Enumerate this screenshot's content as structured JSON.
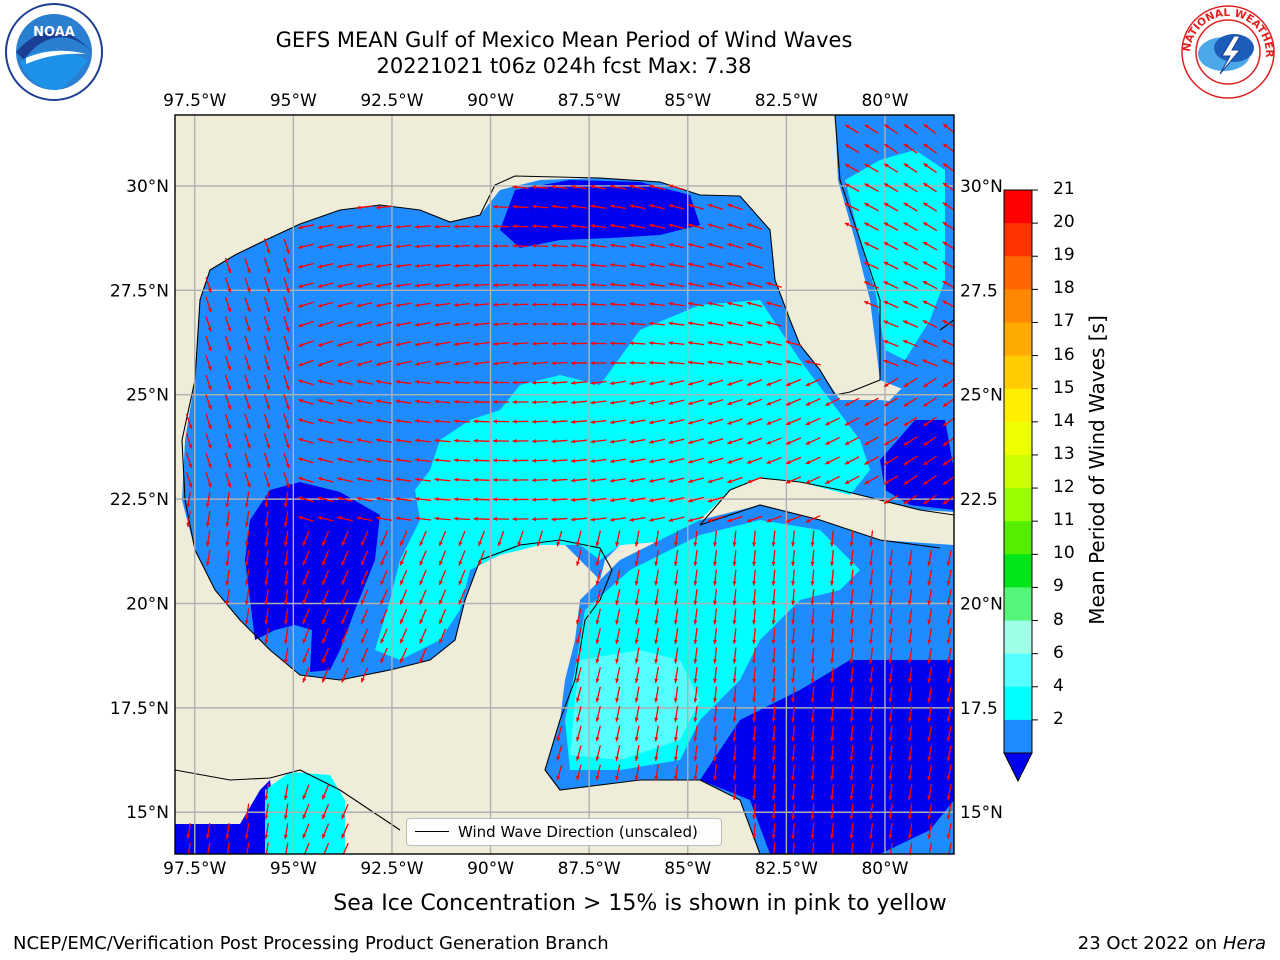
{
  "title": {
    "line1": "GEFS MEAN Gulf of Mexico Mean Period of Wind Waves",
    "line2": "20221021 t06z 024h fcst   Max: 7.38"
  },
  "logos": {
    "left": {
      "icon": "noaa-logo",
      "text": "NOAA"
    },
    "right": {
      "icon": "nws-logo",
      "text": "NATIONAL WEATHER SERVICE"
    }
  },
  "map": {
    "lon_ticks": [
      "97.5°W",
      "95°W",
      "92.5°W",
      "90°W",
      "87.5°W",
      "85°W",
      "82.5°W",
      "80°W"
    ],
    "lat_ticks_left": [
      "30°N",
      "27.5°N",
      "25°N",
      "22.5°N",
      "20°N",
      "17.5°N",
      "15°N"
    ],
    "lat_ticks_right": [
      "30°N",
      "27.5",
      "25°N",
      "22.5",
      "20°N",
      "17.5",
      "15°N"
    ],
    "land_color": "#efedda",
    "gridline_color": "#b0b0b0",
    "arrow_color": "#ff0000",
    "legend_label": "Wind Wave Direction (unscaled)"
  },
  "colorbar": {
    "title": "Mean Period of Wind Waves [s]",
    "labels": [
      "21",
      "20",
      "19",
      "18",
      "17",
      "16",
      "15",
      "14",
      "13",
      "12",
      "11",
      "10",
      "9",
      "8",
      "6",
      "4",
      "2"
    ],
    "colors": [
      "#ff0000",
      "#ff3300",
      "#ff6600",
      "#ff8800",
      "#ffaa00",
      "#ffcc00",
      "#ffee00",
      "#eeff00",
      "#ccff00",
      "#99ff00",
      "#55ee00",
      "#00e61a",
      "#55f57a",
      "#a0ffe8",
      "#55ffff",
      "#00ffff",
      "#1e8cff"
    ],
    "extend_color": "#0000ee"
  },
  "footer": {
    "ice_note": "Sea Ice Concentration > 15% is shown in pink to yellow",
    "credit": "NCEP/EMC/Verification Post Processing Product Generation Branch",
    "date": "23 Oct 2022 on ",
    "host": "Hera"
  }
}
